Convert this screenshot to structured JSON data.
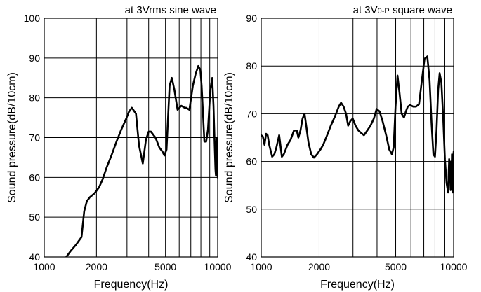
{
  "chart_data": [
    {
      "type": "line",
      "title": "at 3Vrms sine wave",
      "xlabel": "Frequency(Hz)",
      "ylabel": "Sound pressure(dB/10cm)",
      "x_scale": "log",
      "xlim": [
        1000,
        10000
      ],
      "ylim": [
        40,
        100
      ],
      "x_ticks": [
        1000,
        2000,
        5000,
        10000
      ],
      "x_tick_labels": [
        "1000",
        "2000",
        "5000",
        "10000"
      ],
      "y_ticks": [
        40,
        50,
        60,
        70,
        80,
        90,
        100
      ],
      "y_tick_labels": [
        "40",
        "50",
        "60",
        "70",
        "80",
        "90",
        "100"
      ],
      "grid_x": [
        1000,
        2000,
        3000,
        4000,
        5000,
        6000,
        7000,
        8000,
        9000,
        10000
      ],
      "grid_y": [
        40,
        50,
        60,
        70,
        80,
        90,
        100
      ],
      "grid": true,
      "line_color": "#000000",
      "series": [
        {
          "x": [
            1340,
            1420,
            1520,
            1640,
            1700,
            1760,
            1830,
            1950,
            2070,
            2170,
            2290,
            2440,
            2610,
            2780,
            2950,
            3080,
            3200,
            3380,
            3520,
            3700,
            3860,
            4000,
            4120,
            4380,
            4610,
            4800,
            4930,
            5070,
            5280,
            5440,
            5630,
            5870,
            6170,
            6450,
            6580,
            6870,
            7190,
            7460,
            7730,
            7950,
            8080,
            8210,
            8380,
            8580,
            8790,
            9070,
            9300,
            9460,
            9580,
            9710,
            9770,
            9840,
            9890,
            9950,
            10000
          ],
          "y": [
            40,
            41.5,
            43,
            45,
            51.5,
            54,
            55,
            56,
            57.5,
            59.5,
            62.5,
            65.5,
            69,
            72,
            74.5,
            76.5,
            77.5,
            76,
            68,
            63.5,
            69.5,
            71.5,
            71.5,
            70,
            67.5,
            66.5,
            65.5,
            67,
            83,
            85,
            82,
            77,
            78,
            77.5,
            77.5,
            77,
            83,
            86,
            88,
            87,
            83,
            77,
            69,
            69,
            72,
            82,
            85,
            78,
            70,
            62,
            60.5,
            70,
            61,
            68,
            60
          ]
        }
      ]
    },
    {
      "type": "line",
      "title": "at 3V0-P square wave",
      "title_main": "at 3V",
      "title_small": "0-P",
      "title_rest": " square wave",
      "xlabel": "Frequency(Hz)",
      "ylabel": "Sound pressure(dB/10cm)",
      "x_scale": "log",
      "xlim": [
        1000,
        10000
      ],
      "ylim": [
        40,
        90
      ],
      "x_ticks": [
        1000,
        2000,
        5000,
        10000
      ],
      "x_tick_labels": [
        "1000",
        "2000",
        "5000",
        "10000"
      ],
      "y_ticks": [
        40,
        50,
        60,
        70,
        80,
        90
      ],
      "y_tick_labels": [
        "40",
        "50",
        "60",
        "70",
        "80",
        "90"
      ],
      "grid_x": [
        1000,
        2000,
        3000,
        4000,
        5000,
        6000,
        7000,
        8000,
        9000,
        10000
      ],
      "grid_y": [
        40,
        50,
        60,
        70,
        80,
        90
      ],
      "grid": true,
      "line_color": "#000000",
      "series": [
        {
          "x": [
            1000,
            1020,
            1040,
            1060,
            1080,
            1100,
            1140,
            1170,
            1200,
            1240,
            1280,
            1310,
            1340,
            1370,
            1420,
            1480,
            1530,
            1560,
            1600,
            1640,
            1680,
            1720,
            1760,
            1820,
            1880,
            1950,
            2030,
            2100,
            2200,
            2300,
            2420,
            2530,
            2600,
            2680,
            2760,
            2830,
            2910,
            2990,
            3090,
            3200,
            3300,
            3420,
            3560,
            3700,
            3850,
            3980,
            4120,
            4270,
            4460,
            4630,
            4780,
            4880,
            4990,
            5110,
            5230,
            5370,
            5520,
            5650,
            5780,
            5940,
            6170,
            6380,
            6610,
            6840,
            7060,
            7300,
            7500,
            7680,
            7850,
            8000,
            8150,
            8310,
            8460,
            8640,
            8830,
            9010,
            9190,
            9360,
            9480,
            9580,
            9650,
            9700,
            9750,
            9800,
            9850,
            9900,
            9950,
            10000
          ],
          "y": [
            65.5,
            65.2,
            63.5,
            65.8,
            65.5,
            63.5,
            61,
            61.5,
            63,
            65.5,
            61,
            61.5,
            62.5,
            63.5,
            64.5,
            66.5,
            66.5,
            65,
            66.5,
            69,
            70,
            67,
            64,
            61.5,
            60.8,
            61.5,
            62.5,
            63.5,
            65.5,
            67.5,
            69.5,
            71.5,
            72.3,
            71.5,
            70,
            67.5,
            68.5,
            69,
            67.5,
            66.5,
            66,
            65.5,
            66.5,
            67.5,
            69,
            71,
            70.5,
            68.5,
            65.5,
            62.5,
            61.5,
            63,
            71.5,
            78,
            74.5,
            70,
            69.2,
            70.5,
            71.5,
            71.8,
            71.5,
            71.5,
            72,
            77,
            81.5,
            82,
            77,
            68,
            61.5,
            61,
            66.5,
            75,
            78.5,
            76.5,
            69,
            60.5,
            55.5,
            53.5,
            60.5,
            57,
            54,
            60,
            55.5,
            61.5,
            54.5,
            53.5,
            56,
            62
          ]
        }
      ]
    }
  ]
}
